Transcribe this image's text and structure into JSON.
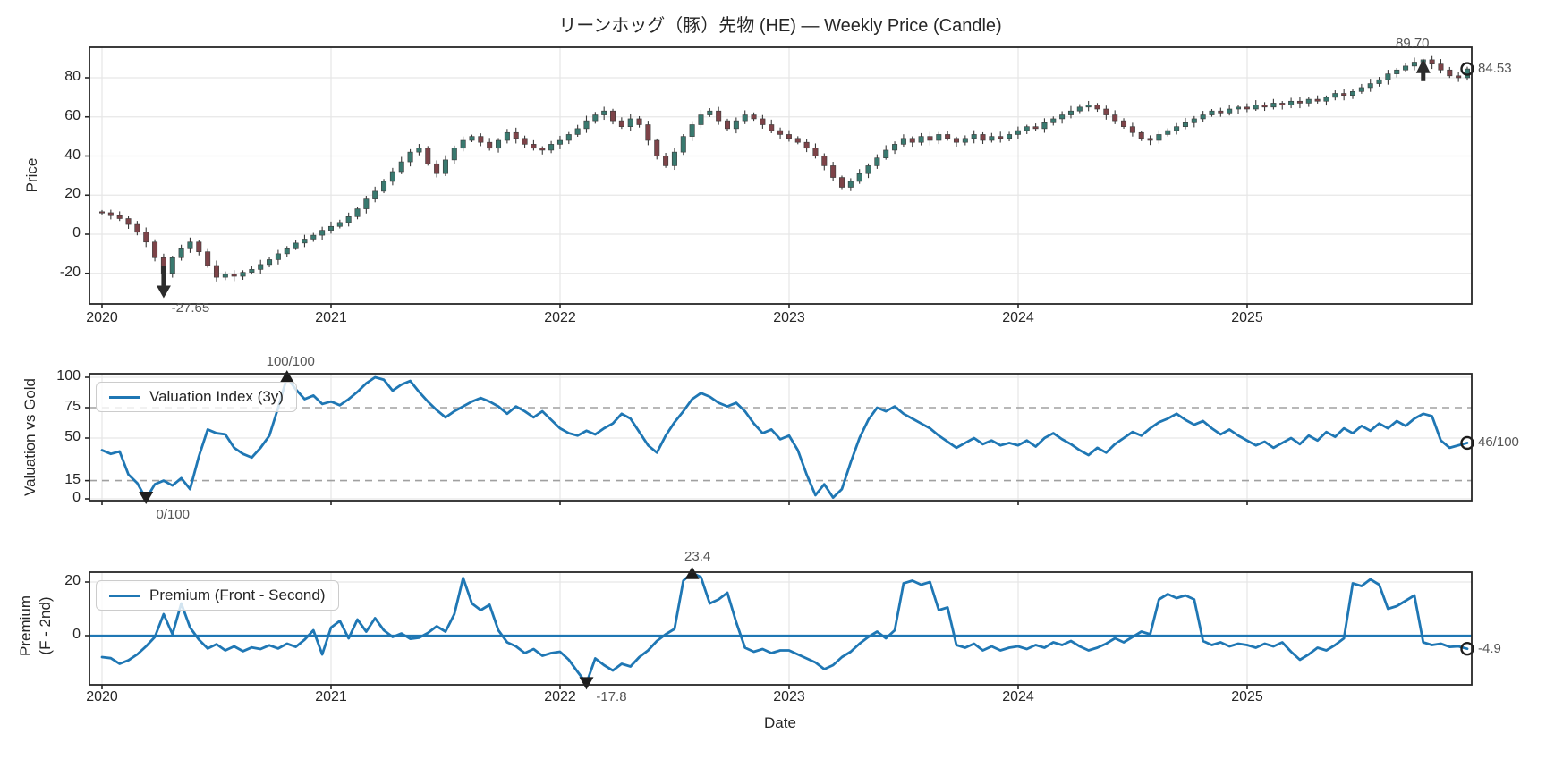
{
  "chart_data": [
    {
      "type": "candlestick",
      "title": "リーンホッグ（豚）先物 (HE) — Weekly Price (Candle)",
      "ylabel": "Price",
      "yticks": [
        -20,
        0,
        20,
        40,
        60,
        80
      ],
      "ylim": [
        -35.5,
        95.5
      ],
      "x_years": [
        "2020",
        "2021",
        "2022",
        "2023",
        "2024",
        "2025"
      ],
      "points_per_year": 26,
      "grid": true,
      "first_open": 11.5,
      "closes": [
        11,
        9.5,
        8,
        5,
        1,
        -4,
        -12,
        -20,
        -12,
        -7,
        -4,
        -9,
        -16,
        -22,
        -20.5,
        -21.5,
        -19.5,
        -18,
        -15.5,
        -13,
        -10,
        -7,
        -4.5,
        -2.5,
        -0.5,
        2,
        4,
        6,
        9,
        13,
        18,
        22,
        27,
        32,
        37,
        42,
        44,
        36,
        31,
        38,
        44,
        48,
        50,
        47,
        44,
        48,
        52,
        49,
        46,
        44,
        43,
        46,
        48,
        51,
        54,
        58,
        61,
        63,
        58,
        55,
        59,
        56,
        48,
        40,
        35,
        42,
        50,
        56,
        61,
        63,
        58,
        54,
        58,
        61,
        59,
        56,
        53,
        51,
        49,
        47,
        44,
        40,
        35,
        29,
        24,
        27,
        31,
        35,
        39,
        43,
        46,
        49,
        47,
        50,
        48,
        51,
        49,
        47,
        49,
        51,
        48,
        50,
        49,
        51,
        53,
        55,
        54,
        57,
        59,
        61,
        63,
        65,
        66,
        64,
        61,
        58,
        55,
        52,
        49,
        48,
        51,
        53,
        55,
        57,
        59,
        61,
        63,
        62,
        64,
        65,
        64,
        66,
        65,
        67,
        66,
        68,
        67,
        69,
        68,
        70,
        72,
        71,
        73,
        75,
        77,
        79,
        82,
        84,
        86,
        88,
        89.2,
        87,
        84,
        81,
        80,
        84.53
      ],
      "wick": {
        "base": 0.9,
        "amp": 1.7
      },
      "annotations": {
        "low": {
          "index": 7,
          "value": -27.65,
          "label": "-27.65"
        },
        "high": {
          "index": 150,
          "value": 89.7,
          "label": "89.70"
        },
        "last": {
          "index": 155,
          "value": 84.53,
          "label": "84.53"
        }
      },
      "colors": {
        "up": "#39796f",
        "down": "#7d4348",
        "wick": "#3a3a3a"
      }
    },
    {
      "type": "line",
      "ylabel": "Valuation vs Gold",
      "legend": "Valuation Index (3y)",
      "yticks": [
        0,
        15,
        50,
        75,
        100
      ],
      "solid_grid_levels": [
        0,
        50,
        100
      ],
      "dashed_levels": [
        15,
        75
      ],
      "ylim": [
        -1.5,
        103
      ],
      "color": "#1f77b4",
      "values": [
        40,
        37,
        39,
        20,
        13,
        0,
        12,
        15,
        11,
        17,
        8,
        35,
        57,
        54,
        53,
        42,
        37,
        34,
        42,
        52,
        75,
        100,
        90,
        82,
        85,
        78,
        80,
        77,
        82,
        88,
        95,
        100,
        98,
        89,
        94,
        97,
        88,
        80,
        73,
        67,
        72,
        76,
        80,
        83,
        80,
        76,
        70,
        76,
        72,
        67,
        72,
        65,
        58,
        54,
        52,
        56,
        53,
        58,
        62,
        70,
        66,
        55,
        44,
        38,
        52,
        63,
        72,
        82,
        87,
        84,
        79,
        76,
        79,
        72,
        62,
        54,
        57,
        49,
        52,
        40,
        20,
        3,
        12,
        1,
        8,
        30,
        50,
        65,
        75,
        72,
        76,
        70,
        66,
        62,
        58,
        52,
        47,
        42,
        46,
        50,
        45,
        48,
        44,
        46,
        44,
        48,
        43,
        50,
        54,
        49,
        45,
        40,
        36,
        42,
        38,
        45,
        50,
        55,
        52,
        58,
        63,
        66,
        70,
        65,
        61,
        64,
        58,
        53,
        57,
        52,
        48,
        44,
        47,
        42,
        46,
        50,
        45,
        52,
        48,
        55,
        51,
        58,
        54,
        60,
        56,
        62,
        58,
        64,
        60,
        66,
        70,
        68,
        48,
        42,
        44,
        46
      ],
      "annotations": {
        "max": {
          "index": 21,
          "value": 100,
          "label": "100/100"
        },
        "min": {
          "index": 5,
          "value": 0,
          "label": "0/100"
        },
        "last": {
          "index": 155,
          "value": 46,
          "label": "46/100"
        }
      }
    },
    {
      "type": "line",
      "ylabel_line1": "Premium",
      "ylabel_line2": "(F - 2nd)",
      "xlabel": "Date",
      "legend": "Premium (Front - Second)",
      "yticks": [
        0,
        20
      ],
      "zero_line": true,
      "ylim": [
        -18.5,
        23.7
      ],
      "x_years": [
        "2020",
        "2021",
        "2022",
        "2023",
        "2024",
        "2025"
      ],
      "color": "#1f77b4",
      "values": [
        -8,
        -8.4,
        -10.5,
        -9.2,
        -7,
        -4,
        -0.5,
        8,
        0.5,
        12,
        3,
        -1.5,
        -4.8,
        -3.2,
        -5.5,
        -4,
        -5.8,
        -4.4,
        -5,
        -3.6,
        -4.8,
        -3,
        -4.2,
        -1.5,
        2,
        -7,
        3,
        5.5,
        -1,
        6,
        1.5,
        6.5,
        2,
        -0.5,
        0.8,
        -1.2,
        -0.8,
        1,
        3.5,
        1.5,
        8,
        21.5,
        12,
        9.5,
        11.5,
        2,
        -2.5,
        -4,
        -6.5,
        -5,
        -7.5,
        -6.5,
        -6,
        -9,
        -13.5,
        -17.8,
        -8.5,
        -11,
        -13,
        -10.5,
        -11.5,
        -8,
        -5.5,
        -2,
        0.5,
        2.5,
        20.5,
        23.4,
        21.8,
        12,
        13.5,
        16,
        5,
        -4.5,
        -6,
        -5,
        -6.5,
        -5.5,
        -5.5,
        -7,
        -8.5,
        -10,
        -12.5,
        -11,
        -8,
        -6,
        -3,
        -0.5,
        1.5,
        -1,
        2,
        19.5,
        20.5,
        19,
        20,
        9.5,
        10.5,
        -3.5,
        -4.5,
        -3,
        -5.5,
        -4,
        -5.5,
        -4.5,
        -4,
        -5,
        -3.5,
        -4.5,
        -2.5,
        -3.5,
        -2,
        -4,
        -5.5,
        -4.5,
        -3,
        -1,
        -2.5,
        -0.5,
        1.5,
        0.5,
        13.5,
        15.5,
        14,
        15,
        13.5,
        -2,
        -3.5,
        -2.5,
        -4,
        -3,
        -3.5,
        -4.5,
        -3,
        -4,
        -2.5,
        -6,
        -9,
        -7,
        -4.5,
        -5.5,
        -3.5,
        -1,
        19.5,
        18.5,
        21,
        19,
        10,
        11,
        13,
        15,
        -2.5,
        -3.5,
        -3,
        -4.2,
        -4,
        -4.9
      ],
      "annotations": {
        "max": {
          "index": 67,
          "value": 23.4,
          "label": "23.4"
        },
        "min": {
          "index": 55,
          "value": -17.8,
          "label": "-17.8"
        },
        "last": {
          "index": 155,
          "value": -4.9,
          "label": "-4.9"
        }
      }
    }
  ],
  "style": {
    "accent_blue": "#1f77b4",
    "spine_color": "#262626",
    "grid_color": "#e7e7e7",
    "dashed_color": "#a0a0a0",
    "annotation_color": "#555555",
    "marker_color": "#1d1d1d"
  }
}
